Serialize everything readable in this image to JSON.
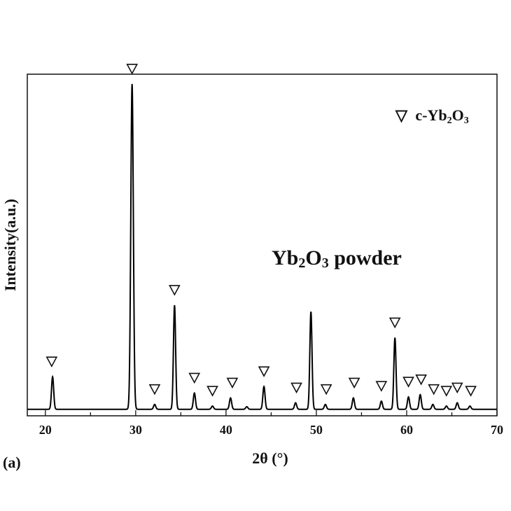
{
  "chart_data": {
    "type": "line",
    "title": "",
    "xlabel": "2θ (°)",
    "ylabel": "Intensity(a.u.)",
    "xlim": [
      18,
      70
    ],
    "ylim": [
      0,
      105
    ],
    "xticks": [
      20,
      30,
      40,
      50,
      60,
      70
    ],
    "grid": false,
    "legend": {
      "placement": "top-right",
      "symbol": "▽",
      "label_main": "c-Yb",
      "label_sub1": "2",
      "label_mid": "O",
      "label_sub2": "3"
    },
    "annotation": {
      "main": "Yb",
      "sub1": "2",
      "mid": "O",
      "sub2": "3",
      "rest": " powder"
    },
    "panel_label": "(a)",
    "baseline": 2,
    "series": [
      {
        "name": "",
        "peaks": [
          {
            "x": 20.8,
            "h": 10
          },
          {
            "x": 29.6,
            "h": 100
          },
          {
            "x": 32.1,
            "h": 1.5
          },
          {
            "x": 34.3,
            "h": 32
          },
          {
            "x": 36.5,
            "h": 5
          },
          {
            "x": 38.5,
            "h": 1
          },
          {
            "x": 40.5,
            "h": 3.5
          },
          {
            "x": 42.3,
            "h": 0.8
          },
          {
            "x": 44.2,
            "h": 7
          },
          {
            "x": 47.7,
            "h": 2
          },
          {
            "x": 49.4,
            "h": 30
          },
          {
            "x": 51.0,
            "h": 1.5
          },
          {
            "x": 54.1,
            "h": 3.5
          },
          {
            "x": 57.2,
            "h": 2.5
          },
          {
            "x": 58.7,
            "h": 22
          },
          {
            "x": 60.2,
            "h": 3.8
          },
          {
            "x": 61.5,
            "h": 4.5
          },
          {
            "x": 62.9,
            "h": 1.5
          },
          {
            "x": 64.4,
            "h": 1
          },
          {
            "x": 65.6,
            "h": 2
          },
          {
            "x": 67.0,
            "h": 1
          }
        ]
      }
    ],
    "markers": [
      20.7,
      29.6,
      32.1,
      34.3,
      36.5,
      38.5,
      40.7,
      44.2,
      47.8,
      51.1,
      54.2,
      57.2,
      58.7,
      60.2,
      61.6,
      63.0,
      64.4,
      65.6,
      67.1
    ],
    "line_color": "#000000"
  }
}
